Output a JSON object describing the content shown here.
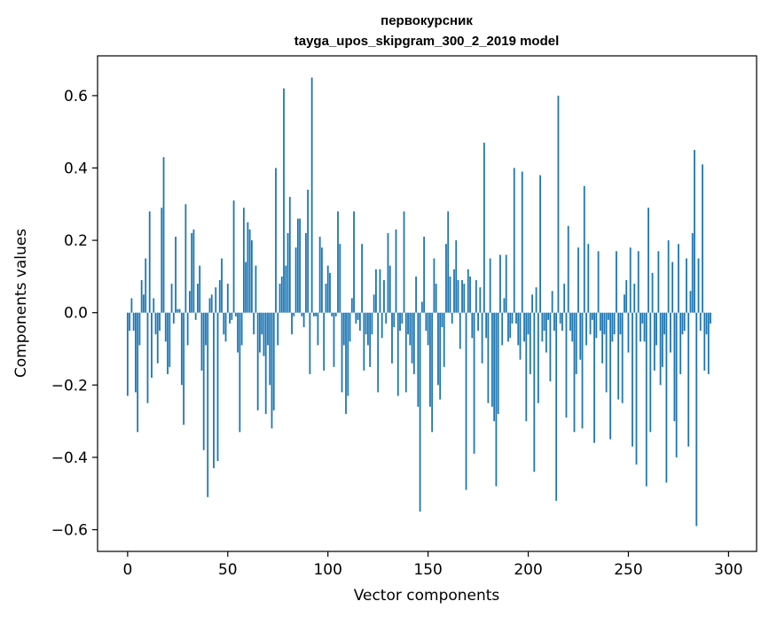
{
  "chart_data": {
    "type": "bar",
    "title_line1": "первокурсник",
    "title_line2": "tayga_upos_skipgram_300_2_2019 model",
    "xlabel": "Vector components",
    "ylabel": "Components values",
    "xlim": [
      -15,
      314
    ],
    "ylim": [
      -0.66,
      0.71
    ],
    "xticks": [
      0,
      50,
      100,
      150,
      200,
      250,
      300
    ],
    "xtick_labels": [
      "0",
      "50",
      "100",
      "150",
      "200",
      "250",
      "300"
    ],
    "yticks": [
      -0.6,
      -0.4,
      -0.2,
      0.0,
      0.2,
      0.4,
      0.6
    ],
    "ytick_labels": [
      "−0.6",
      "−0.4",
      "−0.2",
      "0.0",
      "0.2",
      "0.4",
      "0.6"
    ],
    "bar_color": "#1f77b4",
    "values": [
      -0.23,
      -0.05,
      0.04,
      -0.05,
      -0.22,
      -0.33,
      -0.09,
      0.09,
      0.05,
      0.15,
      -0.25,
      0.28,
      -0.18,
      0.04,
      -0.06,
      -0.14,
      -0.05,
      0.29,
      0.43,
      -0.08,
      -0.17,
      -0.15,
      0.08,
      -0.03,
      0.21,
      0.01,
      0.01,
      -0.2,
      -0.31,
      0.3,
      -0.09,
      0.06,
      0.22,
      0.23,
      -0.02,
      0.08,
      0.13,
      -0.16,
      -0.38,
      -0.09,
      -0.51,
      0.04,
      0.05,
      -0.43,
      0.07,
      -0.41,
      0.09,
      0.15,
      -0.06,
      -0.08,
      0.08,
      -0.03,
      -0.02,
      0.31,
      -0.01,
      -0.11,
      -0.33,
      -0.09,
      0.29,
      0.14,
      0.25,
      0.23,
      0.2,
      -0.06,
      0.13,
      -0.27,
      -0.11,
      -0.06,
      -0.12,
      -0.28,
      -0.09,
      -0.2,
      -0.32,
      -0.27,
      0.4,
      -0.09,
      0.08,
      0.1,
      0.62,
      0.13,
      0.22,
      0.32,
      -0.06,
      -0.01,
      0.18,
      0.26,
      0.26,
      -0.01,
      -0.04,
      0.22,
      0.34,
      -0.17,
      0.65,
      -0.01,
      -0.01,
      -0.09,
      0.21,
      0.18,
      -0.16,
      0.08,
      0.13,
      0.11,
      -0.01,
      -0.15,
      -0.01,
      0.28,
      0.19,
      -0.22,
      -0.09,
      -0.28,
      -0.23,
      -0.08,
      0.04,
      0.28,
      -0.03,
      -0.02,
      -0.05,
      0.19,
      -0.16,
      -0.06,
      -0.09,
      -0.15,
      -0.06,
      0.05,
      0.12,
      -0.22,
      0.12,
      -0.07,
      0.09,
      -0.03,
      0.22,
      0.13,
      -0.14,
      -0.04,
      0.23,
      -0.23,
      -0.05,
      -0.03,
      0.28,
      -0.22,
      -0.06,
      -0.09,
      -0.14,
      -0.17,
      0.1,
      -0.26,
      -0.55,
      0.03,
      0.21,
      -0.05,
      -0.09,
      -0.26,
      -0.33,
      0.15,
      0.08,
      -0.2,
      -0.24,
      -0.04,
      -0.15,
      0.19,
      0.28,
      0.1,
      -0.03,
      0.12,
      0.2,
      0.09,
      -0.1,
      0.09,
      0.08,
      -0.49,
      0.12,
      0.1,
      -0.07,
      -0.39,
      0.09,
      -0.05,
      0.07,
      -0.14,
      0.47,
      -0.07,
      -0.25,
      0.15,
      -0.26,
      -0.3,
      -0.48,
      -0.28,
      0.16,
      -0.09,
      0.04,
      0.16,
      -0.08,
      -0.07,
      -0.03,
      0.4,
      -0.03,
      -0.09,
      -0.13,
      0.39,
      -0.08,
      -0.3,
      -0.06,
      -0.17,
      0.05,
      -0.44,
      0.07,
      -0.25,
      0.38,
      -0.08,
      -0.05,
      -0.11,
      -0.02,
      -0.19,
      0.06,
      -0.05,
      -0.52,
      0.6,
      -0.03,
      -0.05,
      0.08,
      -0.29,
      0.24,
      -0.05,
      -0.08,
      -0.33,
      -0.17,
      0.18,
      -0.13,
      -0.32,
      0.35,
      -0.09,
      0.19,
      -0.06,
      -0.02,
      -0.36,
      -0.07,
      0.17,
      -0.05,
      -0.14,
      -0.06,
      -0.22,
      -0.02,
      -0.35,
      -0.08,
      -0.06,
      0.17,
      -0.24,
      -0.06,
      -0.25,
      0.05,
      0.09,
      -0.11,
      0.18,
      -0.37,
      0.08,
      -0.42,
      0.17,
      -0.08,
      -0.03,
      -0.08,
      -0.48,
      0.29,
      -0.33,
      0.11,
      -0.16,
      -0.09,
      0.17,
      -0.2,
      -0.15,
      -0.06,
      -0.47,
      0.2,
      -0.11,
      0.14,
      -0.3,
      -0.4,
      0.19,
      -0.17,
      -0.06,
      -0.05,
      0.15,
      -0.37,
      0.06,
      0.22,
      0.45,
      -0.59,
      0.15,
      -0.05,
      0.41,
      -0.16,
      -0.06,
      -0.17,
      -0.03
    ]
  }
}
